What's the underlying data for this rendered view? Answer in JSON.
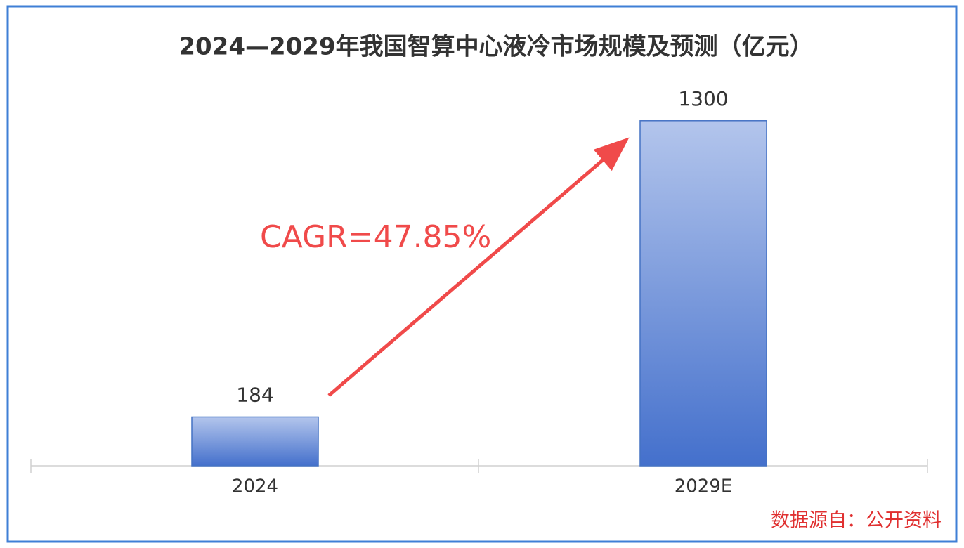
{
  "chart_data": {
    "type": "bar",
    "title": "2024—2029年我国智算中心液冷市场规模及预测（亿元）",
    "categories": [
      "2024",
      "2029E"
    ],
    "values": [
      184,
      1300
    ],
    "color": "#4472c4",
    "ylim": [
      0,
      1400
    ],
    "annotation": "CAGR=47.85%",
    "source": "数据源自：公开资料"
  }
}
